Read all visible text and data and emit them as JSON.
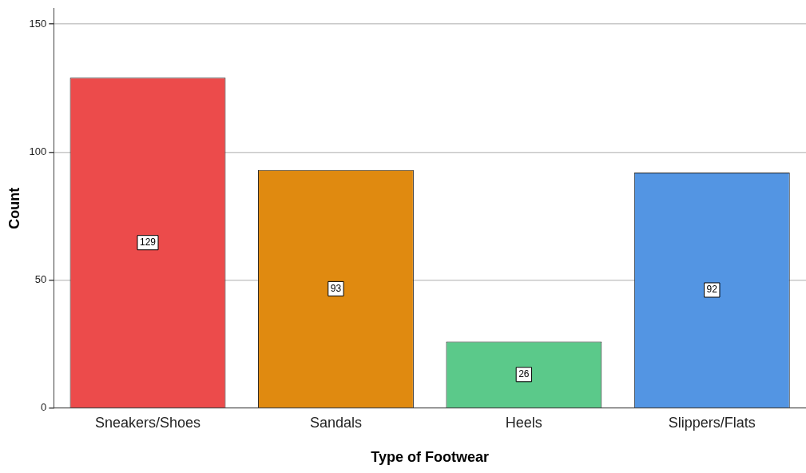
{
  "chart_data": {
    "type": "bar",
    "xlabel": "Type of Footwear",
    "ylabel": "Count",
    "categories": [
      "Sneakers/Shoes",
      "Sandals",
      "Heels",
      "Slippers/Flats"
    ],
    "values": [
      129,
      93,
      26,
      92
    ],
    "colors": [
      "#ec4b4b",
      "#e08a10",
      "#5bc98a",
      "#5395e3"
    ],
    "ylim": [
      0,
      156
    ],
    "yticks": [
      0,
      50,
      100,
      150
    ],
    "grid": "y",
    "legend": false,
    "data_labels": true
  }
}
